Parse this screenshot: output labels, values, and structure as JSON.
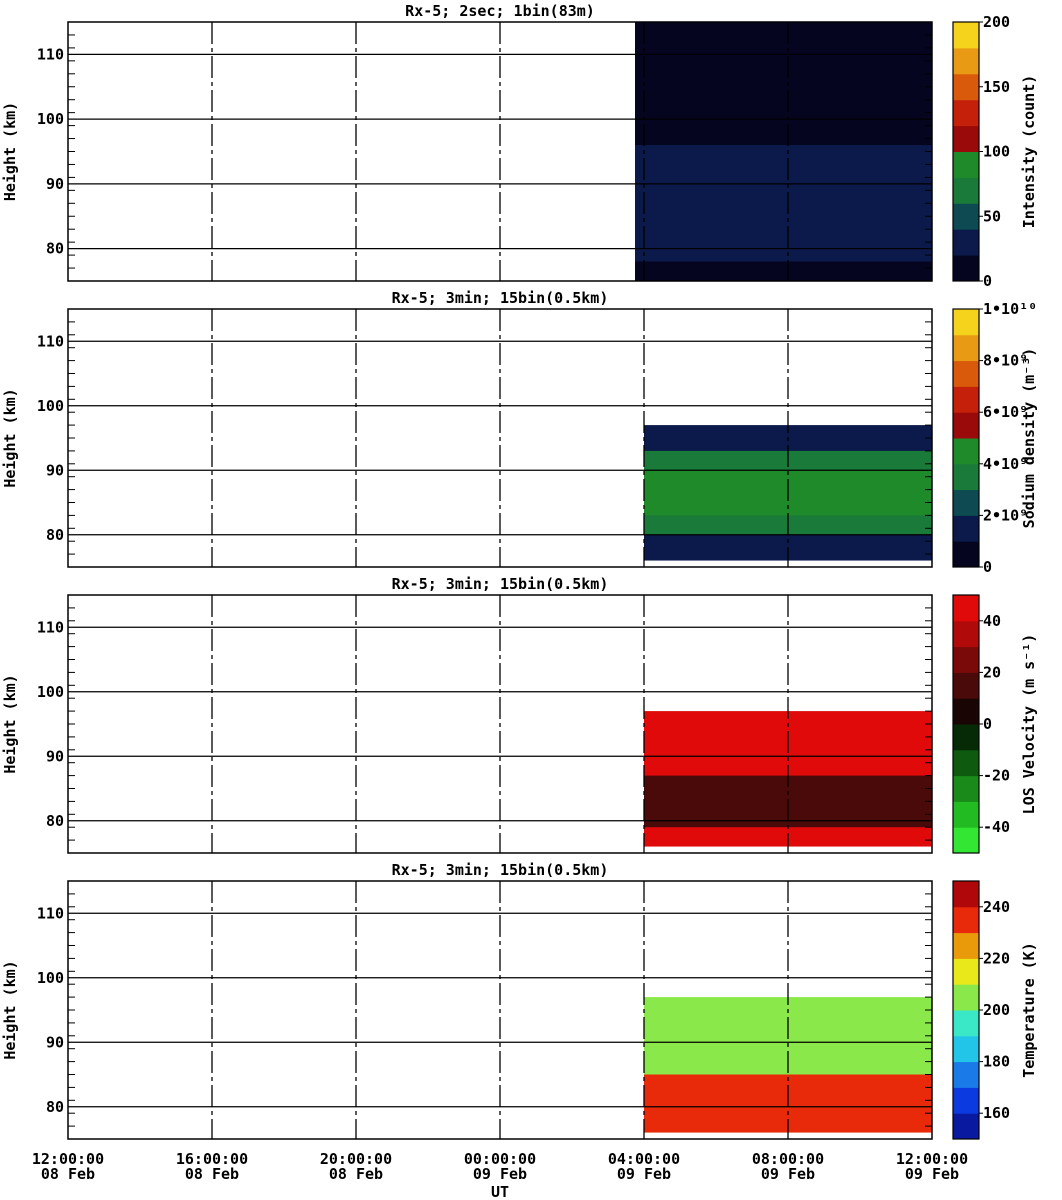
{
  "chart_data": [
    {
      "type": "heatmap",
      "title": "Rx-5;  2sec; 1bin(83m)",
      "ylabel": "Height (km)",
      "ylim": [
        75,
        115
      ],
      "yticks": [
        "80",
        "90",
        "100",
        "110"
      ],
      "xlim": [
        "12:00:00 08 Feb",
        "12:00:00 09 Feb"
      ],
      "colorbar": {
        "label": "Intensity (count)",
        "ticks": [
          "0",
          "50",
          "100",
          "150",
          "200"
        ],
        "range": [
          0,
          200
        ],
        "colors": [
          "#05051f",
          "#0b1a4a",
          "#0d4a52",
          "#1a7a3a",
          "#1f8a2a",
          "#9a0a0a",
          "#c4200a",
          "#d85a0a",
          "#e89a14",
          "#f5d21c"
        ]
      },
      "data_window": {
        "start_hour": 15.75,
        "end_hour": 24.0
      },
      "layers": [
        {
          "h_min": 75,
          "h_max": 115,
          "value": 0
        },
        {
          "h_min": 78,
          "h_max": 96,
          "value": 25
        }
      ]
    },
    {
      "type": "heatmap",
      "title": "Rx-5; 3min; 15bin(0.5km)",
      "ylabel": "Height (km)",
      "ylim": [
        75,
        115
      ],
      "yticks": [
        "80",
        "90",
        "100",
        "110"
      ],
      "colorbar": {
        "label": "Sodium density (m⁻³)",
        "ticks": [
          "0",
          "2•10⁹",
          "4•10⁹",
          "6•10⁹",
          "8•10⁹",
          "1•10¹⁰"
        ],
        "range": [
          0,
          10000000000
        ],
        "colors": [
          "#05051f",
          "#0b1a4a",
          "#0d4a52",
          "#1a7a3a",
          "#1f8a2a",
          "#9a0a0a",
          "#c4200a",
          "#d85a0a",
          "#e89a14",
          "#f5d21c"
        ]
      },
      "data_window": {
        "start_hour": 16.0,
        "end_hour": 24.0
      },
      "layers": [
        {
          "h_min": 76,
          "h_max": 97,
          "value": 1000000000
        },
        {
          "h_min": 80,
          "h_max": 93,
          "value": 3000000000
        },
        {
          "h_min": 83,
          "h_max": 90,
          "value": 4500000000
        }
      ]
    },
    {
      "type": "heatmap",
      "title": "Rx-5; 3min; 15bin(0.5km)",
      "ylabel": "Height (km)",
      "ylim": [
        75,
        115
      ],
      "yticks": [
        "80",
        "90",
        "100",
        "110"
      ],
      "colorbar": {
        "label": "LOS Velocity (m s⁻¹)",
        "ticks": [
          "-40",
          "-20",
          "0",
          "20",
          "40"
        ],
        "range": [
          -50,
          50
        ],
        "colors": [
          "#33e633",
          "#22bb22",
          "#1a8a1a",
          "#0e5a0e",
          "#052a05",
          "#1a0505",
          "#4a0a0a",
          "#7a0a0a",
          "#b00a0a",
          "#e00a0a"
        ]
      },
      "data_window": {
        "start_hour": 16.0,
        "end_hour": 24.0
      },
      "layers": [
        {
          "h_min": 76,
          "h_max": 97,
          "value": 45
        },
        {
          "h_min": 79,
          "h_max": 87,
          "value": 10
        }
      ]
    },
    {
      "type": "heatmap",
      "title": "Rx-5; 3min; 15bin(0.5km)",
      "ylabel": "Height (km)",
      "ylim": [
        75,
        115
      ],
      "yticks": [
        "80",
        "90",
        "100",
        "110"
      ],
      "xticks": [
        [
          "12:00:00",
          "08 Feb"
        ],
        [
          "16:00:00",
          "08 Feb"
        ],
        [
          "20:00:00",
          "08 Feb"
        ],
        [
          "00:00:00",
          "09 Feb"
        ],
        [
          "04:00:00",
          "09 Feb"
        ],
        [
          "08:00:00",
          "09 Feb"
        ],
        [
          "12:00:00",
          "09 Feb"
        ]
      ],
      "xlabel": "UT",
      "colorbar": {
        "label": "Temperature (K)",
        "ticks": [
          "160",
          "180",
          "200",
          "220",
          "240"
        ],
        "range": [
          150,
          250
        ],
        "colors": [
          "#0a1aa0",
          "#0a3ae0",
          "#1a7ae8",
          "#22c4e8",
          "#3ae8c8",
          "#8ae84a",
          "#e8e81a",
          "#e89a0a",
          "#e82a0a",
          "#b0080a"
        ]
      },
      "data_window": {
        "start_hour": 16.0,
        "end_hour": 24.0
      },
      "layers": [
        {
          "h_min": 76,
          "h_max": 97,
          "value": 205
        },
        {
          "h_min": 76,
          "h_max": 85,
          "value": 235
        }
      ]
    }
  ]
}
